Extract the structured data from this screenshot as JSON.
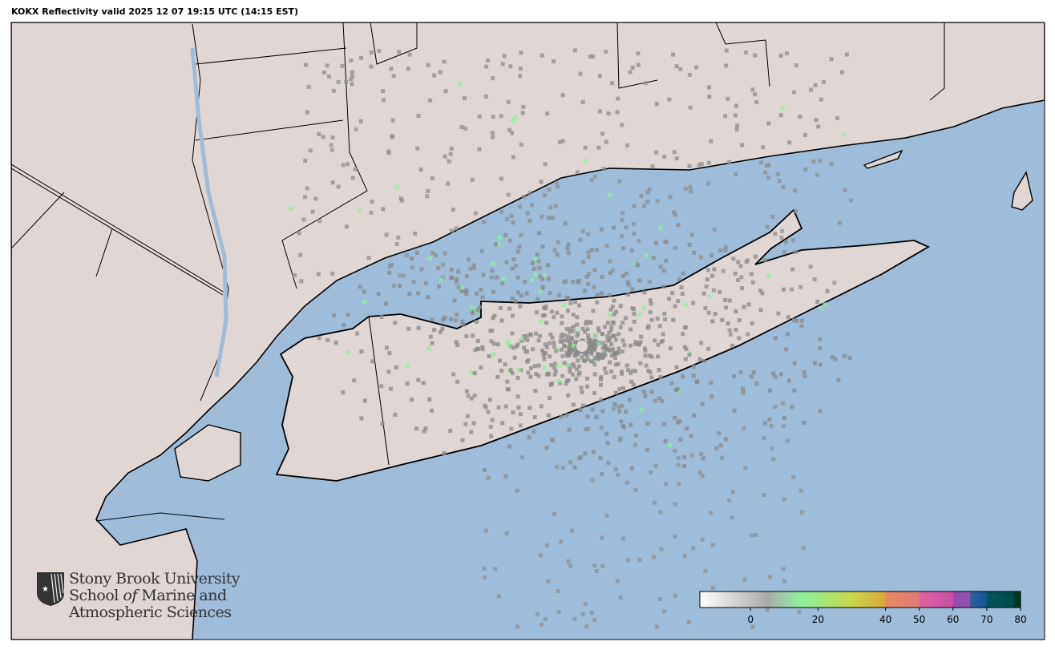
{
  "title": "KOKX Reflectivity valid 2025 12 07 19:15 UTC (14:15 EST)",
  "colors": {
    "water": "#9fbcd8",
    "land": "#e0d6d4",
    "boundary": "#000000"
  },
  "logo": {
    "line1": "Stony Brook University",
    "line2_a": "School ",
    "line2_b": "of",
    "line2_c": " Marine and",
    "line3": "Atmospheric Sciences"
  },
  "colorbar": {
    "range": [
      -15,
      80
    ],
    "ticks": [
      "0",
      "20",
      "40",
      "50",
      "60",
      "70",
      "80"
    ],
    "tick_values": [
      0,
      20,
      40,
      50,
      60,
      70,
      80
    ],
    "stops": [
      {
        "v": -15,
        "c": "#ffffff"
      },
      {
        "v": 5,
        "c": "#aaaaaa"
      },
      {
        "v": 15,
        "c": "#8cf29a"
      },
      {
        "v": 30,
        "c": "#c8d64a"
      },
      {
        "v": 40,
        "c": "#dca83a"
      },
      {
        "v": 40.1,
        "c": "#e88a64"
      },
      {
        "v": 50,
        "c": "#e07a7a"
      },
      {
        "v": 50.1,
        "c": "#e060a0"
      },
      {
        "v": 60,
        "c": "#c850a8"
      },
      {
        "v": 60.1,
        "c": "#9050b0"
      },
      {
        "v": 65,
        "c": "#9050b0"
      },
      {
        "v": 65.1,
        "c": "#3060a0"
      },
      {
        "v": 70,
        "c": "#105890"
      },
      {
        "v": 70.1,
        "c": "#005858"
      },
      {
        "v": 78,
        "c": "#004848"
      },
      {
        "v": 78.1,
        "c": "#003820"
      },
      {
        "v": 80,
        "c": "#003820"
      }
    ]
  }
}
